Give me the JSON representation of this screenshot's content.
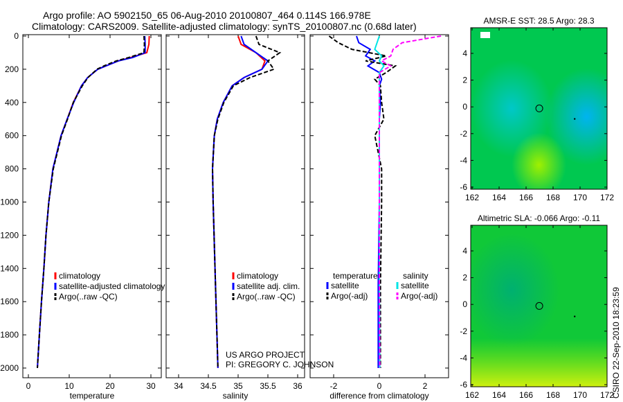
{
  "title_line1": "Argo profile: AO 5902150_65 06-Aug-2010 20100807_464 0.114S 166.978E",
  "title_line2": "Climatology: CARS2009. Satellite-adjusted climatology: synTS_20100807.nc (0.68d later)",
  "side_label": "CSIRO 22-Sep-2010 18:23:59",
  "project_line1": "US ARGO PROJECT",
  "project_line2": "PI: GREGORY C. JOHNSON",
  "colors": {
    "climatology": "#ff0000",
    "satellite": "#0000ff",
    "argo": "#000000",
    "sal_satellite": "#00e5e5",
    "sal_argo": "#ff00ff"
  },
  "chart_data": [
    {
      "type": "line",
      "xlabel": "temperature",
      "ylabel": "",
      "xlim": [
        -2,
        32
      ],
      "ylim": [
        2050,
        0
      ],
      "xticks": [
        "0",
        "10",
        "20",
        "30"
      ],
      "yticks": [
        "0",
        "200",
        "400",
        "600",
        "800",
        "1000",
        "1200",
        "1400",
        "1600",
        "1800",
        "2000"
      ],
      "legend": [
        "climatology",
        "satellite-adjusted climatology",
        "Argo(..raw -QC)"
      ],
      "depth": [
        0,
        50,
        100,
        130,
        150,
        180,
        200,
        250,
        300,
        400,
        500,
        600,
        700,
        800,
        1000,
        1200,
        1400,
        1600,
        1800,
        2000
      ],
      "series": [
        {
          "name": "climatology",
          "values": [
            29.6,
            29.5,
            29.0,
            25,
            22,
            19,
            17,
            14.5,
            13,
            11,
            9.5,
            8,
            7,
            6,
            5,
            4.3,
            3.8,
            3.2,
            2.7,
            2.2
          ]
        },
        {
          "name": "satellite-adjusted climatology",
          "values": [
            28.5,
            28.6,
            28.6,
            25.5,
            22,
            19,
            17,
            14.5,
            13,
            11.1,
            9.5,
            8,
            7,
            6,
            5,
            4.3,
            3.8,
            3.2,
            2.7,
            2.2
          ]
        },
        {
          "name": "Argo(..raw -QC)",
          "values": [
            28.3,
            28.4,
            28.3,
            24.5,
            21.5,
            18.5,
            16.8,
            14.6,
            13.2,
            11,
            9.6,
            8.1,
            7.1,
            6.1,
            5,
            4.3,
            3.8,
            3.2,
            2.7,
            2.2
          ]
        }
      ]
    },
    {
      "type": "line",
      "xlabel": "salinity",
      "xlim": [
        33.8,
        36.1
      ],
      "ylim": [
        2050,
        0
      ],
      "xticks": [
        "34",
        "34.5",
        "35",
        "35.5",
        "36"
      ],
      "legend": [
        "climatology",
        "satellite adj. clim.",
        "Argo(..raw -QC)"
      ],
      "depth": [
        0,
        50,
        100,
        150,
        200,
        250,
        300,
        400,
        500,
        600,
        800,
        1000,
        1500,
        2000
      ],
      "series": [
        {
          "name": "climatology",
          "values": [
            35.0,
            35.05,
            35.3,
            35.45,
            35.4,
            35.1,
            34.9,
            34.75,
            34.65,
            34.6,
            34.57,
            34.58,
            34.62,
            34.66
          ]
        },
        {
          "name": "satellite adj. clim.",
          "values": [
            35.05,
            35.1,
            35.3,
            35.5,
            35.4,
            35.1,
            34.9,
            34.75,
            34.65,
            34.6,
            34.57,
            34.58,
            34.62,
            34.66
          ]
        },
        {
          "name": "Argo(..raw -QC)",
          "values": [
            35.3,
            35.35,
            35.7,
            35.5,
            35.6,
            35.2,
            34.92,
            34.76,
            34.66,
            34.6,
            34.57,
            34.58,
            34.62,
            34.66
          ]
        }
      ]
    },
    {
      "type": "line",
      "xlabel": "difference from climatology",
      "xlim": [
        -3,
        3
      ],
      "ylim": [
        2050,
        0
      ],
      "xticks": [
        "-2",
        "0",
        "2"
      ],
      "legend_headers": [
        "temperature",
        "salinity"
      ],
      "legend": [
        "satellite",
        "Argo(-adj)",
        "satellite",
        "Argo(-adj)"
      ],
      "depth": [
        0,
        40,
        80,
        120,
        150,
        180,
        220,
        260,
        300,
        400,
        500,
        600,
        800,
        1000,
        1500,
        2000
      ],
      "series": [
        {
          "name": "temperature satellite",
          "values": [
            -1.0,
            -0.9,
            -0.4,
            -0.6,
            -0.2,
            -0.5,
            0.0,
            0.1,
            0.0,
            0.05,
            0.0,
            0.0,
            0.0,
            0.0,
            -0.05,
            -0.05
          ]
        },
        {
          "name": "temperature Argo(-adj)",
          "values": [
            -2.2,
            -1.8,
            -1.2,
            0.3,
            -0.6,
            0.7,
            0.3,
            -0.2,
            0.05,
            0.1,
            0.2,
            -0.2,
            0.1,
            0.1,
            0.05,
            0.05
          ]
        },
        {
          "name": "salinity satellite",
          "values": [
            0.0,
            -0.1,
            -0.2,
            0.1,
            0.0,
            0.2,
            0.0,
            0.0,
            0.0,
            0.0,
            0.0,
            0.0,
            0.0,
            0.0,
            0.0,
            0.02
          ]
        },
        {
          "name": "salinity Argo(-adj)",
          "values": [
            2.7,
            1.0,
            0.6,
            0.5,
            0.1,
            0.5,
            0.0,
            0.0,
            0.0,
            0.0,
            0.0,
            0.0,
            0.0,
            0.0,
            0.0,
            0.02
          ]
        }
      ]
    },
    {
      "type": "heatmap",
      "title": "AMSR-E SST: 28.5 Argo: 28.3",
      "xlim": [
        162,
        172
      ],
      "ylim": [
        -6.2,
        5.8
      ],
      "xticks": [
        "162",
        "164",
        "166",
        "168",
        "170",
        "172"
      ],
      "yticks": [
        "4",
        "2",
        "0",
        "-2",
        "-4",
        "-6"
      ],
      "marker": {
        "lon": 166.978,
        "lat": -0.114
      }
    },
    {
      "type": "heatmap",
      "title": "Altimetric SLA: -0.066 Argo: -0.11",
      "xlim": [
        162,
        172
      ],
      "ylim": [
        -6.2,
        5.8
      ],
      "xticks": [
        "162",
        "164",
        "166",
        "168",
        "170",
        "172"
      ],
      "yticks": [
        "4",
        "2",
        "0",
        "-2",
        "-4",
        "-6"
      ],
      "marker": {
        "lon": 166.978,
        "lat": -0.114
      }
    }
  ]
}
